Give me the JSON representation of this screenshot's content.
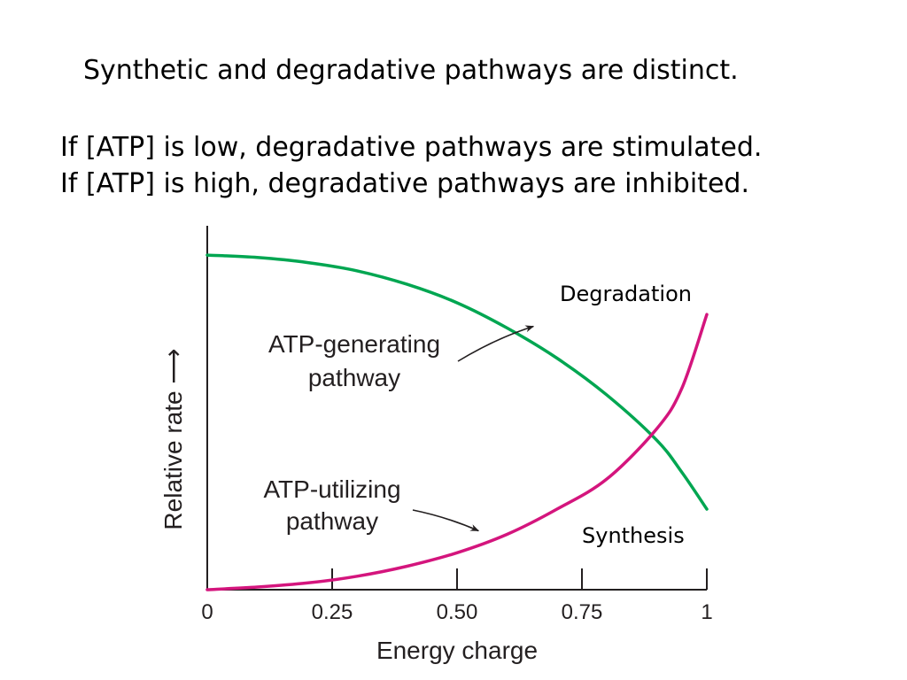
{
  "slide": {
    "heading": "Synthetic and degradative pathways are distinct.",
    "line_low": "If [ATP] is low, degradative pathways are stimulated.",
    "line_high": "If [ATP] is high, degradative pathways are inhibited."
  },
  "chart_data": {
    "type": "line",
    "xlabel": "Energy charge",
    "ylabel": "Relative rate ⟶",
    "xlim": [
      0,
      1
    ],
    "ylim": [
      0,
      1
    ],
    "xticks": [
      {
        "value": 0,
        "label": "0"
      },
      {
        "value": 0.25,
        "label": "0.25"
      },
      {
        "value": 0.5,
        "label": "0.50"
      },
      {
        "value": 0.75,
        "label": "0.75"
      },
      {
        "value": 1,
        "label": "1"
      }
    ],
    "grid": false,
    "series": [
      {
        "id": "degradation",
        "name": "Degradation",
        "color": "#00a651",
        "x": [
          0,
          0.1,
          0.2,
          0.3,
          0.4,
          0.5,
          0.6,
          0.7,
          0.8,
          0.9,
          0.95,
          1.0
        ],
        "y": [
          0.997,
          0.99,
          0.975,
          0.95,
          0.91,
          0.855,
          0.78,
          0.69,
          0.58,
          0.445,
          0.35,
          0.24
        ]
      },
      {
        "id": "synthesis",
        "name": "Synthesis",
        "color": "#d4157d",
        "x": [
          0,
          0.1,
          0.2,
          0.3,
          0.4,
          0.5,
          0.6,
          0.7,
          0.8,
          0.9,
          0.95,
          1.0
        ],
        "y": [
          0.0,
          0.008,
          0.02,
          0.04,
          0.07,
          0.11,
          0.165,
          0.24,
          0.33,
          0.48,
          0.6,
          0.82
        ]
      }
    ],
    "annotations": [
      {
        "id": "gen",
        "lines": [
          "ATP-generating",
          "pathway"
        ],
        "arrow_to": {
          "x": 0.66,
          "y": 0.79
        }
      },
      {
        "id": "util",
        "lines": [
          "ATP-utilizing",
          "pathway"
        ],
        "arrow_to": {
          "x": 0.55,
          "y": 0.165
        }
      }
    ]
  }
}
